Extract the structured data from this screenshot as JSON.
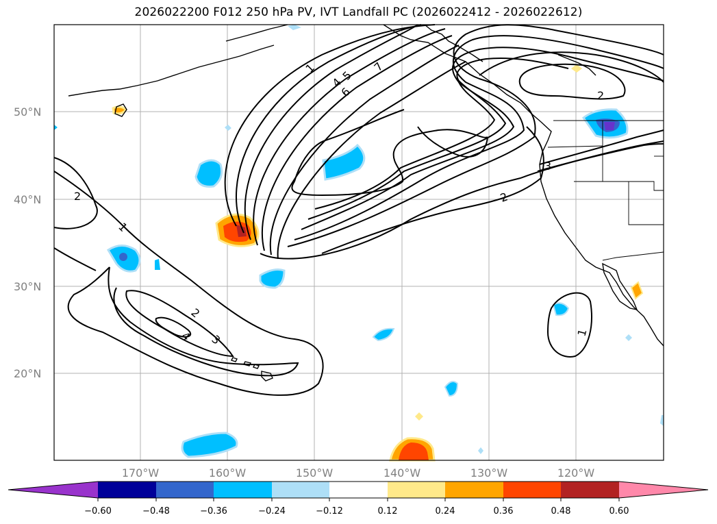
{
  "title": "2026022200 F012 250 hPa PV, IVT Landfall PC (2026022412 - 2026022612)",
  "map": {
    "lat_labels": [
      "50°N",
      "40°N",
      "30°N",
      "20°N"
    ],
    "lon_labels": [
      "170°W",
      "160°W",
      "150°W",
      "140°W",
      "130°W",
      "120°W"
    ],
    "contour_labels": [
      "1",
      "2",
      "3",
      "4",
      "5",
      "6",
      "7"
    ]
  },
  "colorbar": {
    "tick_labels": [
      "−0.60",
      "−0.48",
      "−0.36",
      "−0.24",
      "−0.12",
      "0.12",
      "0.24",
      "0.36",
      "0.48",
      "0.60"
    ],
    "colors": [
      "#9933cc",
      "#000099",
      "#3366cc",
      "#00bfff",
      "#aedff7",
      "#ffffff",
      "#ffe98a",
      "#ffa500",
      "#ff4500",
      "#b22222",
      "#ff88aa"
    ]
  }
}
